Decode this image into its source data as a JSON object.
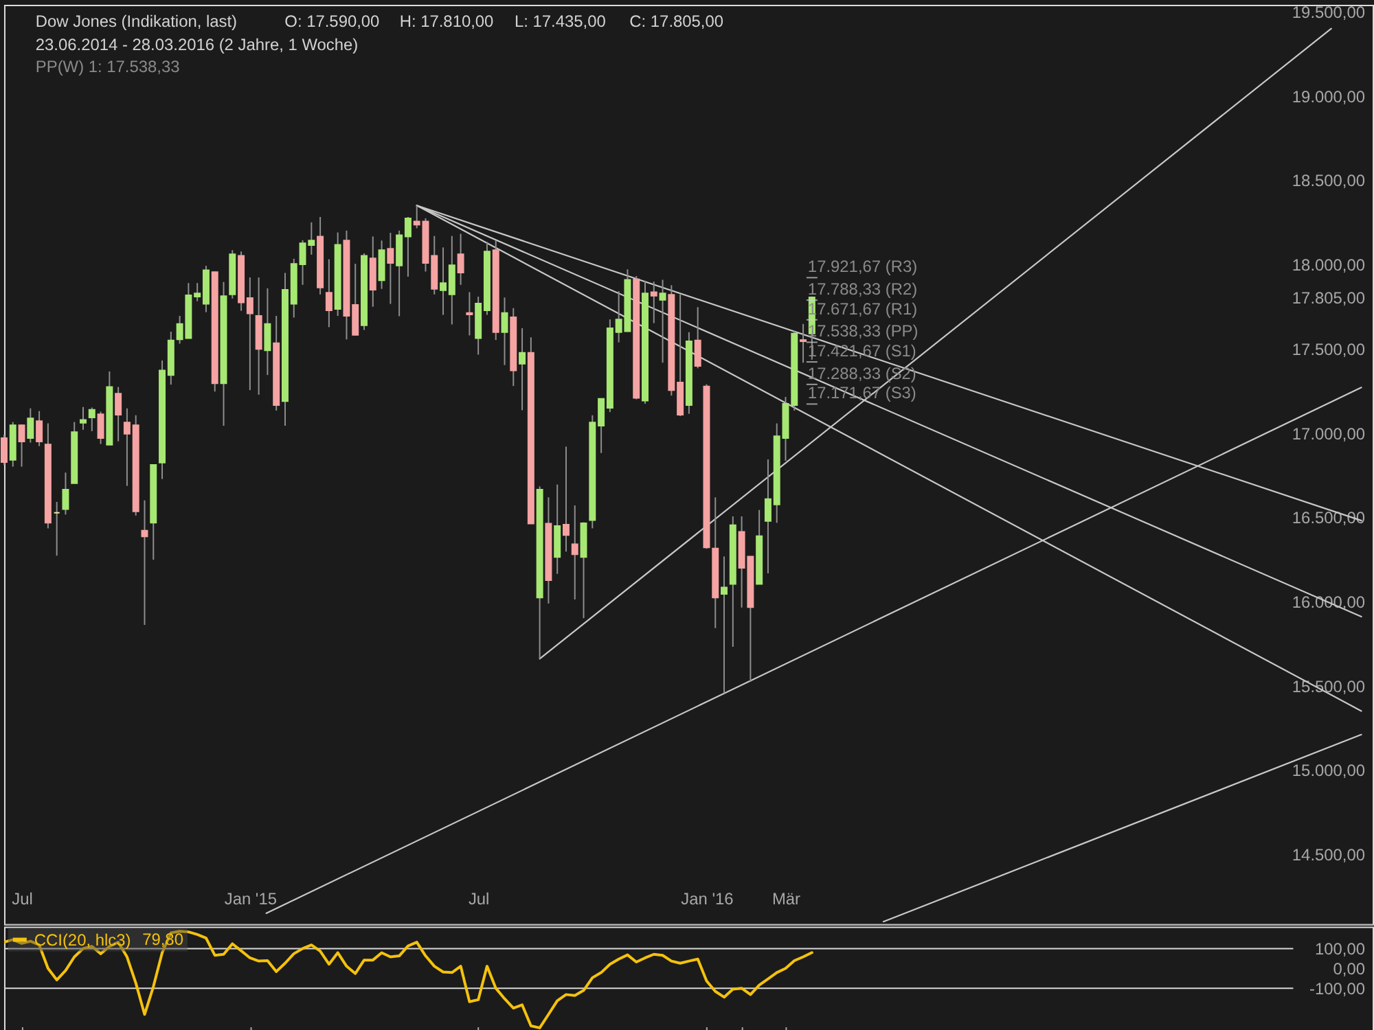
{
  "chart_data": [
    {
      "type": "candlestick",
      "title": "Dow Jones (Indikation, last)",
      "subtitle": "23.06.2014 - 28.03.2016 (2 Jahre, 1 Woche)",
      "annotations": [
        "O: 17.590,00",
        "H: 17.810,00",
        "L: 17.435,00",
        "C: 17.805,00",
        "PP(W) 1: 17.538,33"
      ],
      "ref_lines": [
        {
          "axis": "y",
          "value": 17921.67,
          "label": "17.921,67 (R3)",
          "color": "#d0d0d0"
        },
        {
          "axis": "y",
          "value": 17788.33,
          "label": "17.788,33 (R2)",
          "color": "#d0d0d0"
        },
        {
          "axis": "y",
          "value": 17671.67,
          "label": "17.671,67 (R1)",
          "color": "#d0d0d0"
        },
        {
          "axis": "y",
          "value": 17538.33,
          "label": "17.538,33 (PP)",
          "color": "#d0d0d0"
        },
        {
          "axis": "y",
          "value": 17421.67,
          "label": "17.421,67 (S1)",
          "color": "#d0d0d0"
        },
        {
          "axis": "y",
          "value": 17288.33,
          "label": "17.288,33 (S2)",
          "color": "#d0d0d0"
        },
        {
          "axis": "y",
          "value": 17171.67,
          "label": "17.171,67 (S3)",
          "color": "#d0d0d0"
        }
      ],
      "x": [
        "2014-06-23",
        "2014-06-30",
        "2014-07-07",
        "2014-07-14",
        "2014-07-21",
        "2014-07-28",
        "2014-08-04",
        "2014-08-11",
        "2014-08-18",
        "2014-08-25",
        "2014-09-01",
        "2014-09-08",
        "2014-09-15",
        "2014-09-22",
        "2014-09-29",
        "2014-10-06",
        "2014-10-13",
        "2014-10-20",
        "2014-10-27",
        "2014-11-03",
        "2014-11-10",
        "2014-11-17",
        "2014-11-24",
        "2014-12-01",
        "2014-12-08",
        "2014-12-15",
        "2014-12-22",
        "2014-12-29",
        "2015-01-05",
        "2015-01-12",
        "2015-01-19",
        "2015-01-26",
        "2015-02-02",
        "2015-02-09",
        "2015-02-16",
        "2015-02-23",
        "2015-03-02",
        "2015-03-09",
        "2015-03-16",
        "2015-03-23",
        "2015-03-30",
        "2015-04-06",
        "2015-04-13",
        "2015-04-20",
        "2015-04-27",
        "2015-05-04",
        "2015-05-11",
        "2015-05-18",
        "2015-05-25",
        "2015-06-01",
        "2015-06-08",
        "2015-06-15",
        "2015-06-22",
        "2015-06-29",
        "2015-07-06",
        "2015-07-13",
        "2015-07-20",
        "2015-07-27",
        "2015-08-03",
        "2015-08-10",
        "2015-08-17",
        "2015-08-24",
        "2015-08-31",
        "2015-09-07",
        "2015-09-14",
        "2015-09-21",
        "2015-09-28",
        "2015-10-05",
        "2015-10-12",
        "2015-10-19",
        "2015-10-26",
        "2015-11-02",
        "2015-11-09",
        "2015-11-16",
        "2015-11-23",
        "2015-11-30",
        "2015-12-07",
        "2015-12-14",
        "2015-12-21",
        "2015-12-28",
        "2016-01-04",
        "2016-01-11",
        "2016-01-18",
        "2016-01-25",
        "2016-02-01",
        "2016-02-08",
        "2016-02-15",
        "2016-02-22",
        "2016-02-29",
        "2016-03-07",
        "2016-03-14",
        "2016-03-21",
        "2016-03-28"
      ],
      "ohlc": [
        [
          16970,
          16990,
          16810,
          16827
        ],
        [
          16840,
          17065,
          16800,
          17046
        ],
        [
          17046,
          17050,
          16800,
          16949
        ],
        [
          16970,
          17146,
          16943,
          17087
        ],
        [
          17070,
          17130,
          16922,
          16949
        ],
        [
          16932,
          17057,
          16434,
          16467
        ],
        [
          16526,
          16591,
          16272,
          16526
        ],
        [
          16548,
          16765,
          16516,
          16664
        ],
        [
          16702,
          17065,
          16700,
          17005
        ],
        [
          17060,
          17154,
          17019,
          17078
        ],
        [
          17092,
          17151,
          17011,
          17138
        ],
        [
          17111,
          17127,
          16935,
          16970
        ],
        [
          16930,
          17365,
          16930,
          17273
        ],
        [
          17233,
          17273,
          16951,
          17108
        ],
        [
          17062,
          17146,
          16686,
          16995
        ],
        [
          17046,
          17105,
          16510,
          16535
        ],
        [
          16421,
          16600,
          15861,
          16386
        ],
        [
          16467,
          16813,
          16248,
          16811
        ],
        [
          16824,
          17430,
          16727,
          17371
        ],
        [
          17344,
          17601,
          17287,
          17549
        ],
        [
          17555,
          17695,
          17530,
          17647
        ],
        [
          17563,
          17890,
          17563,
          17817
        ],
        [
          17809,
          17890,
          17782,
          17828
        ],
        [
          17766,
          17992,
          17717,
          17966
        ],
        [
          17955,
          17958,
          17246,
          17295
        ],
        [
          17295,
          17896,
          17043,
          17812
        ],
        [
          17822,
          18085,
          17798,
          18061
        ],
        [
          18052,
          18077,
          17725,
          17774
        ],
        [
          17801,
          17923,
          17254,
          17709
        ],
        [
          17695,
          17923,
          17227,
          17498
        ],
        [
          17490,
          17858,
          17344,
          17647
        ],
        [
          17533,
          17695,
          17133,
          17165
        ],
        [
          17189,
          17950,
          17043,
          17850
        ],
        [
          17766,
          18034,
          17685,
          18004
        ],
        [
          18001,
          18144,
          17879,
          18126
        ],
        [
          18115,
          18250,
          18058,
          18142
        ],
        [
          18166,
          18282,
          17822,
          17863
        ],
        [
          17833,
          18031,
          17628,
          17728
        ],
        [
          17736,
          18190,
          17695,
          18117
        ],
        [
          18142,
          18201,
          17555,
          17695
        ],
        [
          17760,
          18004,
          17579,
          17582
        ],
        [
          17639,
          18066,
          17611,
          18052
        ],
        [
          18036,
          18166,
          17749,
          17850
        ],
        [
          17906,
          18142,
          17855,
          18085
        ],
        [
          18093,
          18188,
          17766,
          18009
        ],
        [
          17993,
          18201,
          17693,
          18174
        ],
        [
          18166,
          18282,
          17928,
          18274
        ],
        [
          18255,
          18350,
          18215,
          18236
        ],
        [
          18255,
          18274,
          17958,
          18009
        ],
        [
          18052,
          18169,
          17822,
          17855
        ],
        [
          17847,
          18101,
          17701,
          17890
        ],
        [
          17822,
          18169,
          17644,
          17996
        ],
        [
          18061,
          18182,
          17879,
          17952
        ],
        [
          17712,
          17836,
          17579,
          17703
        ],
        [
          17563,
          17809,
          17465,
          17768
        ],
        [
          17728,
          18134,
          17701,
          18077
        ],
        [
          18085,
          18142,
          17552,
          17598
        ],
        [
          17598,
          17804,
          17403,
          17712
        ],
        [
          17687,
          17741,
          17279,
          17371
        ],
        [
          17411,
          17622,
          17135,
          17476
        ],
        [
          17476,
          17568,
          16462,
          16462
        ],
        [
          16023,
          16683,
          15660,
          16664
        ],
        [
          16462,
          16618,
          15988,
          16126
        ],
        [
          16264,
          16694,
          16164,
          16448
        ],
        [
          16456,
          16919,
          16296,
          16394
        ],
        [
          16340,
          16570,
          16012,
          16280
        ],
        [
          16264,
          16470,
          15901,
          16464
        ],
        [
          16483,
          17105,
          16434,
          17062
        ],
        [
          17043,
          17206,
          16881,
          17203
        ],
        [
          17149,
          17674,
          17124,
          17622
        ],
        [
          17598,
          17841,
          17538,
          17674
        ],
        [
          17603,
          17971,
          17603,
          17909
        ],
        [
          17912,
          17931,
          17200,
          17208
        ],
        [
          17192,
          17904,
          17173,
          17828
        ],
        [
          17836,
          17898,
          17652,
          17814
        ],
        [
          17790,
          17909,
          17417,
          17828
        ],
        [
          17820,
          17877,
          17222,
          17254
        ],
        [
          17300,
          17822,
          17100,
          17108
        ],
        [
          17165,
          17598,
          17114,
          17544
        ],
        [
          17549,
          17747,
          17384,
          17398
        ],
        [
          17276,
          17289,
          16313,
          16321
        ],
        [
          16315,
          16618,
          15842,
          16023
        ],
        [
          16045,
          16267,
          15455,
          16083
        ],
        [
          16104,
          16505,
          15731,
          16453
        ],
        [
          16413,
          16505,
          15964,
          16199
        ],
        [
          16267,
          16267,
          15523,
          15966
        ],
        [
          16104,
          16543,
          16104,
          16388
        ],
        [
          16478,
          16843,
          16167,
          16608
        ],
        [
          16575,
          17057,
          16467,
          16981
        ],
        [
          16970,
          17214,
          16835,
          17173
        ],
        [
          17165,
          17606,
          17133,
          17590
        ],
        [
          17552,
          17647,
          17417,
          17544
        ],
        [
          17590,
          17810,
          17435,
          17805
        ]
      ],
      "colors": [
        "#f5a3a3",
        "#a6e873",
        "#f5a3a3",
        "#a6e873",
        "#f5a3a3",
        "#f5a3a3",
        "#e6eba0",
        "#a6e873",
        "#a6e873",
        "#a6e873",
        "#a6e873",
        "#f5a3a3",
        "#a6e873",
        "#f5a3a3",
        "#f5a3a3",
        "#f5a3a3",
        "#f5a3a3",
        "#a6e873",
        "#a6e873",
        "#a6e873",
        "#a6e873",
        "#a6e873",
        "#a6e873",
        "#a6e873",
        "#f5a3a3",
        "#a6e873",
        "#a6e873",
        "#f5a3a3",
        "#f5a3a3",
        "#f5a3a3",
        "#a6e873",
        "#f5a3a3",
        "#a6e873",
        "#a6e873",
        "#a6e873",
        "#a6e873",
        "#f5a3a3",
        "#f5a3a3",
        "#a6e873",
        "#f5a3a3",
        "#f5a3a3",
        "#a6e873",
        "#f5a3a3",
        "#a6e873",
        "#f5a3a3",
        "#a6e873",
        "#a6e873",
        "#f5a3a3",
        "#f5a3a3",
        "#f5a3a3",
        "#a6e873",
        "#a6e873",
        "#f5a3a3",
        "#f5a3a3",
        "#a6e873",
        "#a6e873",
        "#f5a3a3",
        "#a6e873",
        "#f5a3a3",
        "#a6e873",
        "#f5a3a3",
        "#a6e873",
        "#f5a3a3",
        "#a6e873",
        "#f5a3a3",
        "#f5a3a3",
        "#a6e873",
        "#a6e873",
        "#a6e873",
        "#a6e873",
        "#a6e873",
        "#a6e873",
        "#f5a3a3",
        "#a6e873",
        "#f5a3a3",
        "#a6e873",
        "#f5a3a3",
        "#f5a3a3",
        "#a6e873",
        "#f5a3a3",
        "#f5a3a3",
        "#f5a3a3",
        "#a6e873",
        "#a6e873",
        "#f5a3a3",
        "#f5a3a3",
        "#a6e873",
        "#a6e873",
        "#a6e873",
        "#a6e873",
        "#a6e873",
        "#f5a3a3",
        "#a6e873"
      ],
      "series": [
        {
          "type": "line",
          "color": "#c8c8c8",
          "x": [
            "2015-05-18",
            "2017-06-09"
          ],
          "values": [
            18350,
            16480
          ]
        },
        {
          "type": "line",
          "color": "#c8c8c8",
          "x": [
            "2015-05-18",
            "2017-06-09"
          ],
          "values": [
            18350,
            15910
          ]
        },
        {
          "type": "line",
          "color": "#c8c8c8",
          "x": [
            "2015-05-18",
            "2017-06-09"
          ],
          "values": [
            18350,
            15350
          ]
        },
        {
          "type": "line",
          "color": "#c8c8c8",
          "x": [
            "2015-08-24",
            "2017-05-16"
          ],
          "values": [
            15660,
            19400
          ]
        },
        {
          "type": "line",
          "color": "#c8c8c8",
          "x": [
            "2015-01-18",
            "2017-06-09"
          ],
          "values": [
            14150,
            17270
          ]
        },
        {
          "type": "line",
          "color": "#c8c8c8",
          "x": [
            "2016-05-24",
            "2017-06-09"
          ],
          "values": [
            14100,
            15210
          ]
        }
      ],
      "xlim": [
        "2014-06-23",
        "2017-06-18"
      ],
      "xticks": [
        {
          "value": "2014-07-07",
          "label": "Jul"
        },
        {
          "value": "2015-01-05",
          "label": "Jan '15"
        },
        {
          "value": "2015-07-06",
          "label": "Jul"
        },
        {
          "value": "2016-01-04",
          "label": "Jan '16"
        },
        {
          "value": "2016-03-07",
          "label": "Mär"
        }
      ],
      "ylim": [
        14086,
        19541
      ],
      "yticks": [
        {
          "value": 14500,
          "label": "14.500,00"
        },
        {
          "value": 15000,
          "label": "15.000,00"
        },
        {
          "value": 15500,
          "label": "15.500,00"
        },
        {
          "value": 16000,
          "label": "16.000,00"
        },
        {
          "value": 16500,
          "label": "16.500,00"
        },
        {
          "value": 17000,
          "label": "17.000,00"
        },
        {
          "value": 17500,
          "label": "17.500,00"
        },
        {
          "value": 17805,
          "label": "17.805,00"
        },
        {
          "value": 18000,
          "label": "18.000,00"
        },
        {
          "value": 18500,
          "label": "18.500,00"
        },
        {
          "value": 19000,
          "label": "19.000,00"
        },
        {
          "value": 19500,
          "label": "19.500,00"
        }
      ]
    },
    {
      "type": "line",
      "legend": "top left",
      "tick_labels": "y",
      "annotations": [
        "79,80"
      ],
      "x": [
        "2014-06-23",
        "2014-06-30",
        "2014-07-07",
        "2014-07-14",
        "2014-07-21",
        "2014-07-28",
        "2014-08-04",
        "2014-08-11",
        "2014-08-18",
        "2014-08-25",
        "2014-09-01",
        "2014-09-08",
        "2014-09-15",
        "2014-09-22",
        "2014-09-29",
        "2014-10-06",
        "2014-10-13",
        "2014-10-20",
        "2014-10-27",
        "2014-11-03",
        "2014-11-10",
        "2014-11-17",
        "2014-11-24",
        "2014-12-01",
        "2014-12-08",
        "2014-12-15",
        "2014-12-22",
        "2014-12-29",
        "2015-01-05",
        "2015-01-12",
        "2015-01-19",
        "2015-01-26",
        "2015-02-02",
        "2015-02-09",
        "2015-02-16",
        "2015-02-23",
        "2015-03-02",
        "2015-03-09",
        "2015-03-16",
        "2015-03-23",
        "2015-03-30",
        "2015-04-06",
        "2015-04-13",
        "2015-04-20",
        "2015-04-27",
        "2015-05-04",
        "2015-05-11",
        "2015-05-18",
        "2015-05-25",
        "2015-06-01",
        "2015-06-08",
        "2015-06-15",
        "2015-06-22",
        "2015-06-29",
        "2015-07-06",
        "2015-07-13",
        "2015-07-20",
        "2015-07-27",
        "2015-08-03",
        "2015-08-10",
        "2015-08-17",
        "2015-08-24",
        "2015-08-31",
        "2015-09-07",
        "2015-09-14",
        "2015-09-21",
        "2015-09-28",
        "2015-10-05",
        "2015-10-12",
        "2015-10-19",
        "2015-10-26",
        "2015-11-02",
        "2015-11-09",
        "2015-11-16",
        "2015-11-23",
        "2015-11-30",
        "2015-12-07",
        "2015-12-14",
        "2015-12-21",
        "2015-12-28",
        "2016-01-04",
        "2016-01-11",
        "2016-01-18",
        "2016-01-25",
        "2016-02-01",
        "2016-02-08",
        "2016-02-15",
        "2016-02-22",
        "2016-02-29",
        "2016-03-07",
        "2016-03-14",
        "2016-03-21",
        "2016-03-28"
      ],
      "series": [
        {
          "name": "CCI(20, hlc3)",
          "color": "#f4c20d",
          "values": [
            132,
            145,
            126,
            137,
            118,
            0,
            -58,
            -11,
            58,
            100,
            111,
            74,
            111,
            132,
            58,
            -74,
            -232,
            -92,
            79,
            179,
            187,
            184,
            171,
            153,
            66,
            71,
            124,
            89,
            53,
            37,
            39,
            -16,
            26,
            74,
            100,
            118,
            87,
            21,
            79,
            11,
            -26,
            42,
            42,
            79,
            58,
            63,
            113,
            132,
            63,
            11,
            -18,
            -21,
            11,
            -168,
            -158,
            11,
            -100,
            -153,
            -200,
            -184,
            -290,
            -300,
            -232,
            -163,
            -132,
            -137,
            -111,
            -47,
            -21,
            21,
            47,
            68,
            32,
            53,
            71,
            66,
            37,
            26,
            37,
            47,
            -63,
            -116,
            -145,
            -105,
            -100,
            -132,
            -84,
            -53,
            -21,
            0,
            39,
            58,
            79.8
          ]
        }
      ],
      "ref_lines": [
        {
          "axis": "y",
          "value": 100,
          "color": "#d8d8d8"
        },
        {
          "axis": "y",
          "value": -100,
          "color": "#d8d8d8"
        }
      ],
      "xlim": [
        "2014-06-23",
        "2017-06-18"
      ],
      "xticks": [
        {
          "value": "2014-07-07",
          "label": null
        },
        {
          "value": "2015-01-05",
          "label": null
        },
        {
          "value": "2015-07-06",
          "label": null
        },
        {
          "value": "2016-01-04",
          "label": null
        },
        {
          "value": "2016-02-01",
          "label": null
        },
        {
          "value": "2016-03-07",
          "label": null
        }
      ],
      "ylim": [
        -328,
        210
      ],
      "yticks": [
        {
          "value": 100,
          "label": "100,00"
        },
        {
          "value": 0,
          "label": "0,00"
        },
        {
          "value": -100,
          "label": "-100,00"
        }
      ]
    }
  ]
}
